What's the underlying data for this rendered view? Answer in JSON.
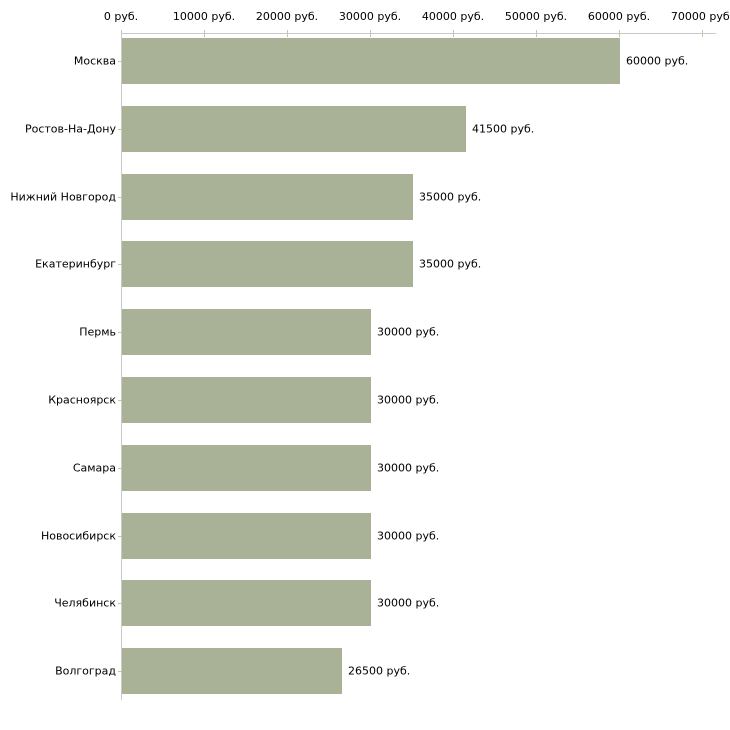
{
  "chart_data": {
    "type": "bar",
    "orientation": "horizontal",
    "title": "",
    "categories": [
      "Москва",
      "Ростов-На-Дону",
      "Нижний Новгород",
      "Екатеринбург",
      "Пермь",
      "Красноярск",
      "Самара",
      "Новосибирск",
      "Челябинск",
      "Волгоград"
    ],
    "values": [
      60000,
      41500,
      35000,
      35000,
      30000,
      30000,
      30000,
      30000,
      30000,
      26500
    ],
    "value_labels": [
      "60000 руб.",
      "41500 руб.",
      "35000 руб.",
      "35000 руб.",
      "30000 руб.",
      "30000 руб.",
      "30000 руб.",
      "30000 руб.",
      "30000 руб.",
      "26500 руб."
    ],
    "x_ticks": [
      0,
      10000,
      20000,
      30000,
      40000,
      50000,
      60000,
      70000
    ],
    "x_tick_labels": [
      "0 руб.",
      "10000 руб.",
      "20000 руб.",
      "30000 руб.",
      "40000 руб.",
      "50000 руб.",
      "60000 руб.",
      "70000 руб."
    ],
    "xlim": [
      0,
      70000
    ],
    "unit": "руб.",
    "grid": false,
    "legend": false,
    "axis_position": "top",
    "colors": {
      "bar": "#a9b196",
      "axis_line": "#c9c9c9",
      "tick_mark": "#c6c89a",
      "text": "#000000",
      "background": "#ffffff"
    }
  }
}
